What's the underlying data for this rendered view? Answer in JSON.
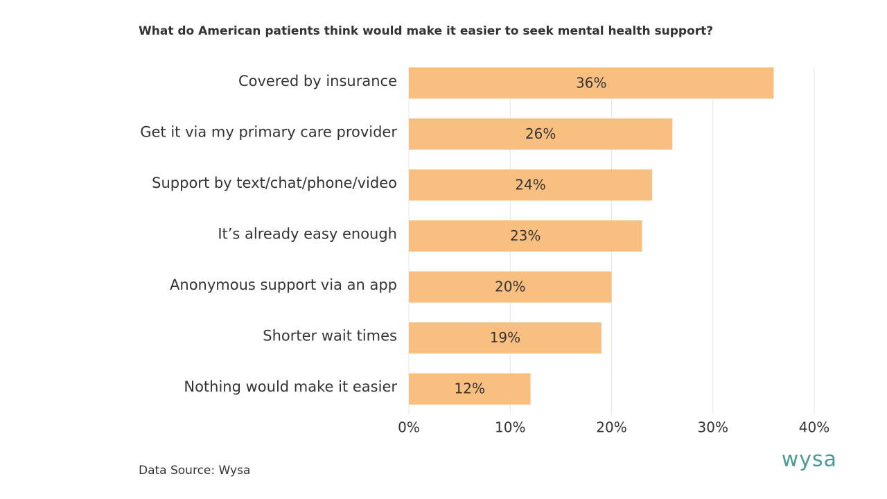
{
  "chart_data": {
    "type": "bar",
    "horizontal": true,
    "title": "What do American patients think would make it easier to seek mental health support?",
    "categories": [
      "Covered by insurance",
      "Get it via my primary care provider",
      "Support by text/chat/phone/video",
      "It’s already easy enough",
      "Anonymous support via an app",
      "Shorter wait times",
      "Nothing would make it easier"
    ],
    "values": [
      36,
      26,
      24,
      23,
      20,
      19,
      12
    ],
    "value_labels": [
      "36%",
      "26%",
      "24%",
      "23%",
      "20%",
      "19%",
      "12%"
    ],
    "color": "#f9bf80",
    "xlim": [
      0,
      40
    ],
    "xticks": [
      {
        "value": 0,
        "label": "0%"
      },
      {
        "value": 10,
        "label": "10%"
      },
      {
        "value": 20,
        "label": "20%"
      },
      {
        "value": 30,
        "label": "30%"
      },
      {
        "value": 40,
        "label": "40%"
      }
    ],
    "grid": true
  },
  "source": "Data Source: Wysa",
  "logo": "wysa"
}
